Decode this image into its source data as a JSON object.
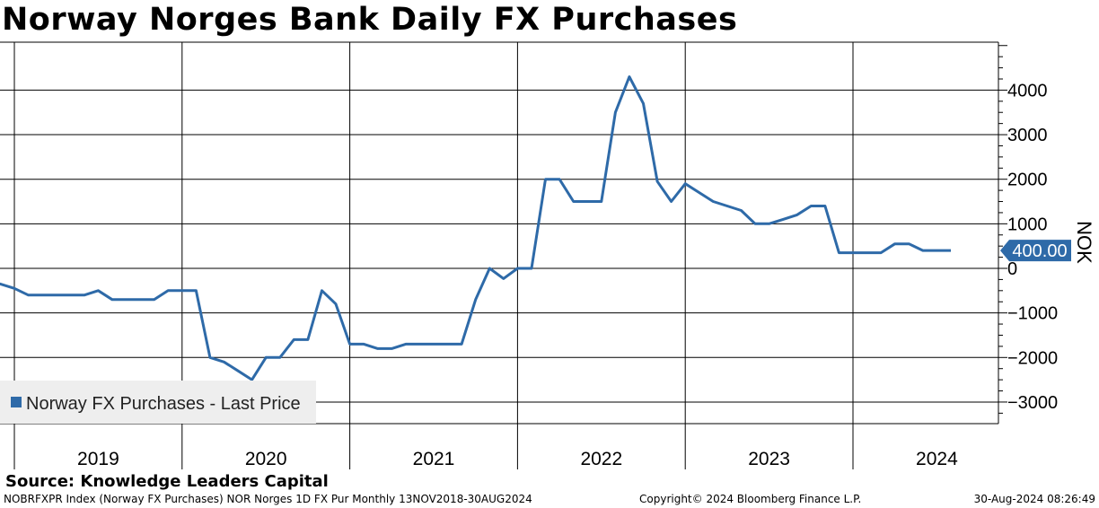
{
  "chart_data": {
    "type": "line",
    "title": "Norway Norges Bank Daily FX Purchases",
    "ylabel": "NOK",
    "ylim": [
      -3500,
      5000
    ],
    "yticks": [
      -3000,
      -2000,
      -1000,
      0,
      1000,
      2000,
      3000,
      4000
    ],
    "year_labels": [
      "2019",
      "2020",
      "2021",
      "2022",
      "2023",
      "2024"
    ],
    "grid": true,
    "legend_position": "bottom-left",
    "last_value_label": "400.00",
    "series": [
      {
        "name": "Norway FX Purchases - Last Price",
        "color": "#2e6aa8",
        "x": [
          "2018-11",
          "2018-12",
          "2019-01",
          "2019-02",
          "2019-03",
          "2019-04",
          "2019-05",
          "2019-06",
          "2019-07",
          "2019-08",
          "2019-09",
          "2019-10",
          "2019-11",
          "2019-12",
          "2020-01",
          "2020-02",
          "2020-03",
          "2020-04",
          "2020-05",
          "2020-06",
          "2020-07",
          "2020-08",
          "2020-09",
          "2020-10",
          "2020-11",
          "2020-12",
          "2021-01",
          "2021-02",
          "2021-03",
          "2021-04",
          "2021-05",
          "2021-06",
          "2021-07",
          "2021-08",
          "2021-09",
          "2021-10",
          "2021-11",
          "2021-12",
          "2022-01",
          "2022-02",
          "2022-03",
          "2022-04",
          "2022-05",
          "2022-06",
          "2022-07",
          "2022-08",
          "2022-09",
          "2022-10",
          "2022-11",
          "2022-12",
          "2023-01",
          "2023-02",
          "2023-03",
          "2023-04",
          "2023-05",
          "2023-06",
          "2023-07",
          "2023-08",
          "2023-09",
          "2023-10",
          "2023-11",
          "2023-12",
          "2024-01",
          "2024-02",
          "2024-03",
          "2024-04",
          "2024-05",
          "2024-06",
          "2024-07",
          "2024-08"
        ],
        "values": [
          -350,
          -350,
          -450,
          -600,
          -600,
          -600,
          -600,
          -600,
          -500,
          -700,
          -700,
          -700,
          -700,
          -500,
          -500,
          -500,
          -2000,
          -2100,
          -2300,
          -2500,
          -2000,
          -2000,
          -1600,
          -1600,
          -500,
          -800,
          -1700,
          -1700,
          -1800,
          -1800,
          -1700,
          -1700,
          -1700,
          -1700,
          -1700,
          -700,
          0,
          -230,
          0,
          0,
          2000,
          2000,
          1500,
          1500,
          1500,
          3500,
          4300,
          3700,
          1950,
          1500,
          1900,
          1700,
          1500,
          1400,
          1300,
          1000,
          1000,
          1100,
          1200,
          1400,
          1400,
          350,
          350,
          350,
          350,
          550,
          550,
          400,
          400,
          400
        ]
      }
    ]
  },
  "source": "Source: Knowledge Leaders Capital",
  "footer": {
    "index_info": "NOBRFXPR Index (Norway FX Purchases) NOR Norges 1D FX Pur  Monthly 13NOV2018-30AUG2024",
    "copyright": "Copyright© 2024 Bloomberg Finance L.P.",
    "timestamp": "30-Aug-2024 08:26:49"
  }
}
